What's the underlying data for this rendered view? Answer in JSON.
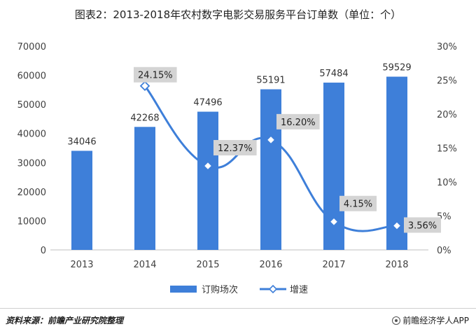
{
  "title": "图表2：2013-2018年农村数字电影交易服务平台订单数（单位：个）",
  "source": "资料来源：前瞻产业研究院整理",
  "brand": "前瞻经济学人APP",
  "colors": {
    "bar": "#3e7fd9",
    "line": "#3e7fd9",
    "label_bg": "#d4d4d4",
    "axis_text": "#404040"
  },
  "chart_data": {
    "type": "bar",
    "categories": [
      "2013",
      "2014",
      "2015",
      "2016",
      "2017",
      "2018"
    ],
    "series": [
      {
        "name": "订购场次",
        "type": "bar",
        "axis": "left",
        "values": [
          34046,
          42268,
          47496,
          55191,
          57484,
          59529
        ],
        "labels": [
          "34046",
          "42268",
          "47496",
          "55191",
          "57484",
          "59529"
        ]
      },
      {
        "name": "增速",
        "type": "line",
        "axis": "right",
        "points": [
          {
            "x": "2014",
            "y": 24.15,
            "label": "24.15%"
          },
          {
            "x": "2015",
            "y": 12.37,
            "label": "12.37%"
          },
          {
            "x": "2016",
            "y": 16.2,
            "label": "16.20%"
          },
          {
            "x": "2017",
            "y": 4.15,
            "label": "4.15%"
          },
          {
            "x": "2018",
            "y": 3.56,
            "label": "3.56%"
          }
        ]
      }
    ],
    "y_left": {
      "min": 0,
      "max": 70000,
      "ticks": [
        "0",
        "10000",
        "20000",
        "30000",
        "40000",
        "50000",
        "60000",
        "70000"
      ]
    },
    "y_right": {
      "min": 0,
      "max": 30,
      "ticks": [
        "0%",
        "5%",
        "10%",
        "15%",
        "20%",
        "25%",
        "30%"
      ]
    },
    "legend": {
      "position": "bottom",
      "items": [
        "订购场次",
        "增速"
      ]
    },
    "grid": false
  }
}
